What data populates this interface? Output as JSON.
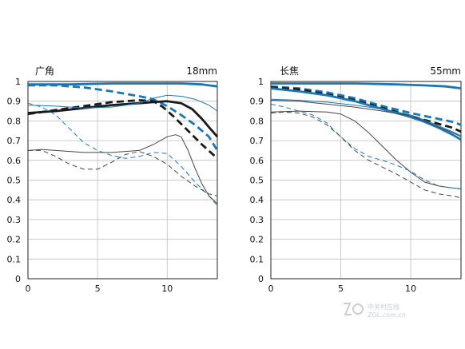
{
  "chart_data": [
    {
      "type": "line",
      "title": "广角",
      "subtitle": "18mm",
      "xlim": [
        0,
        13.6
      ],
      "ylim": [
        0,
        1
      ],
      "x_ticks": [
        "0",
        "5",
        "10"
      ],
      "y_ticks": [
        "0",
        "0.1",
        "0.2",
        "0.3",
        "0.4",
        "0.5",
        "0.6",
        "0.7",
        "0.8",
        "0.9",
        "1"
      ],
      "grid": true,
      "series": [
        {
          "color": "#1c76b4",
          "style": "solid",
          "weight": "thick",
          "points": [
            [
              0,
              0.985
            ],
            [
              3,
              0.985
            ],
            [
              6,
              0.99
            ],
            [
              9,
              0.99
            ],
            [
              11,
              0.99
            ],
            [
              12.5,
              0.985
            ],
            [
              13.6,
              0.975
            ]
          ]
        },
        {
          "color": "#1c76b4",
          "style": "dashed",
          "weight": "thick",
          "points": [
            [
              0,
              0.98
            ],
            [
              2,
              0.98
            ],
            [
              4,
              0.97
            ],
            [
              6,
              0.95
            ],
            [
              8,
              0.925
            ],
            [
              9,
              0.91
            ],
            [
              10,
              0.875
            ],
            [
              11,
              0.83
            ],
            [
              12,
              0.78
            ],
            [
              13,
              0.72
            ],
            [
              13.6,
              0.65
            ]
          ]
        },
        {
          "color": "#1a1a1a",
          "style": "solid",
          "weight": "thick",
          "points": [
            [
              0,
              0.84
            ],
            [
              2,
              0.85
            ],
            [
              4,
              0.865
            ],
            [
              6,
              0.88
            ],
            [
              8,
              0.89
            ],
            [
              9,
              0.895
            ],
            [
              10,
              0.9
            ],
            [
              11,
              0.89
            ],
            [
              11.8,
              0.86
            ],
            [
              12.5,
              0.81
            ],
            [
              13.1,
              0.76
            ],
            [
              13.6,
              0.72
            ]
          ]
        },
        {
          "color": "#1a1a1a",
          "style": "dashed",
          "weight": "thick",
          "points": [
            [
              0,
              0.835
            ],
            [
              2,
              0.855
            ],
            [
              4,
              0.875
            ],
            [
              6,
              0.895
            ],
            [
              8,
              0.905
            ],
            [
              9,
              0.9
            ],
            [
              9.7,
              0.87
            ],
            [
              10.5,
              0.82
            ],
            [
              11.5,
              0.75
            ],
            [
              12.5,
              0.68
            ],
            [
              13.6,
              0.61
            ]
          ]
        },
        {
          "color": "#1c76b4",
          "style": "solid",
          "weight": "thin",
          "points": [
            [
              0,
              0.88
            ],
            [
              2,
              0.875
            ],
            [
              4,
              0.865
            ],
            [
              6,
              0.87
            ],
            [
              8,
              0.89
            ],
            [
              9,
              0.915
            ],
            [
              10,
              0.93
            ],
            [
              11,
              0.925
            ],
            [
              12,
              0.91
            ],
            [
              13,
              0.88
            ],
            [
              13.6,
              0.85
            ]
          ]
        },
        {
          "color": "#1c76b4",
          "style": "dashed",
          "weight": "thin",
          "points": [
            [
              0,
              0.89
            ],
            [
              1,
              0.87
            ],
            [
              2,
              0.83
            ],
            [
              3,
              0.76
            ],
            [
              4,
              0.69
            ],
            [
              5,
              0.65
            ],
            [
              6,
              0.625
            ],
            [
              7,
              0.61
            ],
            [
              8,
              0.62
            ],
            [
              9,
              0.64
            ],
            [
              10,
              0.635
            ],
            [
              11,
              0.57
            ],
            [
              12,
              0.49
            ],
            [
              13,
              0.42
            ],
            [
              13.6,
              0.37
            ]
          ]
        },
        {
          "color": "#444444",
          "style": "solid",
          "weight": "thin",
          "points": [
            [
              0,
              0.65
            ],
            [
              1,
              0.655
            ],
            [
              2,
              0.65
            ],
            [
              4,
              0.64
            ],
            [
              6,
              0.64
            ],
            [
              8,
              0.65
            ],
            [
              9,
              0.68
            ],
            [
              10,
              0.72
            ],
            [
              10.6,
              0.73
            ],
            [
              11,
              0.72
            ],
            [
              11.5,
              0.65
            ],
            [
              12,
              0.56
            ],
            [
              12.5,
              0.48
            ],
            [
              13,
              0.42
            ],
            [
              13.6,
              0.38
            ]
          ]
        },
        {
          "color": "#444444",
          "style": "dashed",
          "weight": "thin",
          "points": [
            [
              0,
              0.65
            ],
            [
              1,
              0.65
            ],
            [
              2,
              0.62
            ],
            [
              3,
              0.58
            ],
            [
              4,
              0.555
            ],
            [
              5,
              0.555
            ],
            [
              6,
              0.59
            ],
            [
              7,
              0.63
            ],
            [
              8,
              0.645
            ],
            [
              9,
              0.62
            ],
            [
              10,
              0.58
            ],
            [
              11,
              0.52
            ],
            [
              12,
              0.47
            ],
            [
              13,
              0.43
            ],
            [
              13.6,
              0.42
            ]
          ]
        }
      ]
    },
    {
      "type": "line",
      "title": "长焦",
      "subtitle": "55mm",
      "xlim": [
        0,
        13.6
      ],
      "ylim": [
        0,
        1
      ],
      "x_ticks": [
        "0",
        "5",
        "10"
      ],
      "y_ticks": [
        "0",
        "0.1",
        "0.2",
        "0.3",
        "0.4",
        "0.5",
        "0.6",
        "0.7",
        "0.8",
        "0.9",
        "1"
      ],
      "grid": true,
      "series": [
        {
          "color": "#1c76b4",
          "style": "solid",
          "weight": "thick",
          "points": [
            [
              0,
              0.99
            ],
            [
              3,
              0.99
            ],
            [
              6,
              0.99
            ],
            [
              9,
              0.985
            ],
            [
              11,
              0.98
            ],
            [
              12.5,
              0.975
            ],
            [
              13.6,
              0.965
            ]
          ]
        },
        {
          "color": "#1c76b4",
          "style": "dashed",
          "weight": "thick",
          "points": [
            [
              0,
              0.975
            ],
            [
              2,
              0.965
            ],
            [
              4,
              0.945
            ],
            [
              6,
              0.915
            ],
            [
              8,
              0.875
            ],
            [
              10,
              0.84
            ],
            [
              11,
              0.825
            ],
            [
              12,
              0.81
            ],
            [
              13,
              0.795
            ],
            [
              13.6,
              0.78
            ]
          ]
        },
        {
          "color": "#1a1a1a",
          "style": "dashed",
          "weight": "thick",
          "points": [
            [
              0,
              0.97
            ],
            [
              2,
              0.96
            ],
            [
              4,
              0.935
            ],
            [
              6,
              0.905
            ],
            [
              8,
              0.865
            ],
            [
              10,
              0.825
            ],
            [
              11,
              0.805
            ],
            [
              12,
              0.785
            ],
            [
              13,
              0.765
            ],
            [
              13.6,
              0.745
            ]
          ]
        },
        {
          "color": "#1c76b4",
          "style": "solid",
          "weight": "thick",
          "points": [
            [
              0,
              0.965
            ],
            [
              2,
              0.95
            ],
            [
              4,
              0.93
            ],
            [
              6,
              0.9
            ],
            [
              8,
              0.86
            ],
            [
              10,
              0.82
            ],
            [
              11,
              0.795
            ],
            [
              12,
              0.765
            ],
            [
              13,
              0.73
            ],
            [
              13.6,
              0.705
            ]
          ]
        },
        {
          "color": "#444444",
          "style": "solid",
          "weight": "thin",
          "points": [
            [
              0,
              0.905
            ],
            [
              2,
              0.9
            ],
            [
              4,
              0.885
            ],
            [
              6,
              0.87
            ],
            [
              8,
              0.85
            ],
            [
              10,
              0.825
            ],
            [
              11,
              0.8
            ],
            [
              12,
              0.77
            ],
            [
              13,
              0.74
            ],
            [
              13.6,
              0.72
            ]
          ]
        },
        {
          "color": "#1c76b4",
          "style": "solid",
          "weight": "thin",
          "points": [
            [
              0,
              0.91
            ],
            [
              2,
              0.905
            ],
            [
              4,
              0.895
            ],
            [
              6,
              0.88
            ],
            [
              8,
              0.86
            ],
            [
              10,
              0.83
            ],
            [
              11,
              0.805
            ],
            [
              12,
              0.775
            ],
            [
              13,
              0.745
            ],
            [
              13.6,
              0.725
            ]
          ]
        },
        {
          "color": "#444444",
          "style": "solid",
          "weight": "thin",
          "points": [
            [
              0,
              0.845
            ],
            [
              2,
              0.85
            ],
            [
              4,
              0.845
            ],
            [
              5,
              0.835
            ],
            [
              6,
              0.8
            ],
            [
              7,
              0.74
            ],
            [
              8,
              0.67
            ],
            [
              9,
              0.6
            ],
            [
              10,
              0.54
            ],
            [
              11,
              0.49
            ],
            [
              12,
              0.47
            ],
            [
              13,
              0.46
            ],
            [
              13.6,
              0.455
            ]
          ]
        },
        {
          "color": "#1c76b4",
          "style": "dashed",
          "weight": "thin",
          "points": [
            [
              0,
              0.885
            ],
            [
              1,
              0.87
            ],
            [
              2,
              0.85
            ],
            [
              3,
              0.83
            ],
            [
              4,
              0.79
            ],
            [
              5,
              0.72
            ],
            [
              6,
              0.66
            ],
            [
              7,
              0.62
            ],
            [
              8,
              0.6
            ],
            [
              9,
              0.575
            ],
            [
              10,
              0.545
            ],
            [
              11,
              0.5
            ],
            [
              12,
              0.47
            ],
            [
              13,
              0.46
            ],
            [
              13.6,
              0.455
            ]
          ]
        },
        {
          "color": "#444444",
          "style": "dashed",
          "weight": "thin",
          "points": [
            [
              0,
              0.84
            ],
            [
              1,
              0.845
            ],
            [
              2,
              0.84
            ],
            [
              3,
              0.82
            ],
            [
              4,
              0.78
            ],
            [
              5,
              0.72
            ],
            [
              6,
              0.65
            ],
            [
              7,
              0.6
            ],
            [
              8,
              0.565
            ],
            [
              9,
              0.53
            ],
            [
              10,
              0.49
            ],
            [
              11,
              0.45
            ],
            [
              12,
              0.43
            ],
            [
              13,
              0.42
            ],
            [
              13.6,
              0.41
            ]
          ]
        }
      ]
    }
  ],
  "watermark": {
    "brand": "中关村在线",
    "domain": "ZOL.com.cn"
  }
}
